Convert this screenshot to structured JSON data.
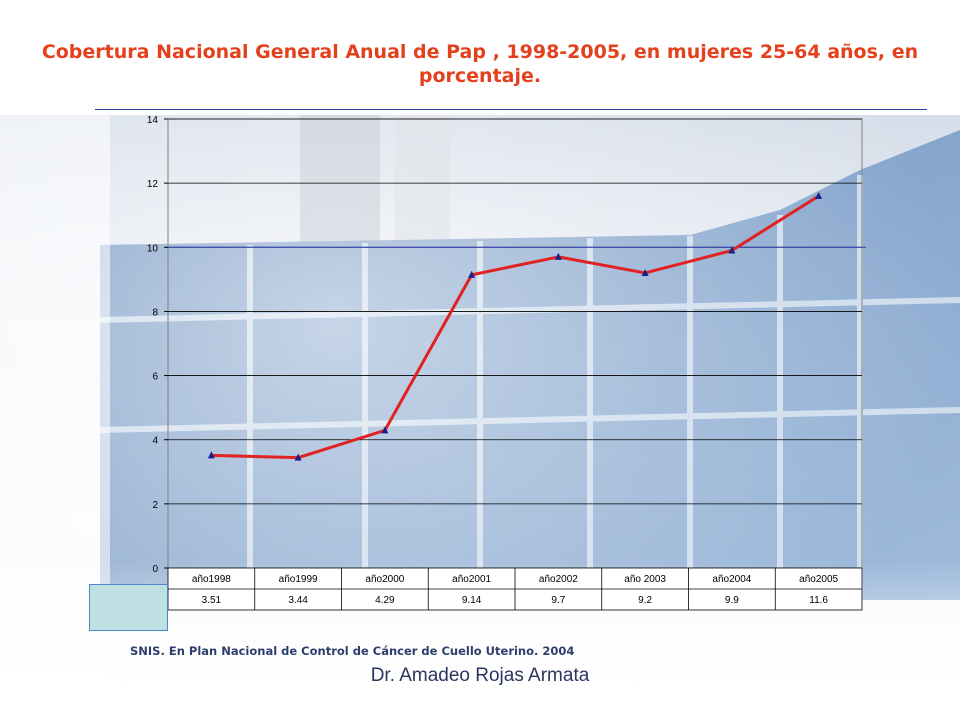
{
  "title_line1": "Cobertura  Nacional General Anual de Pap , 1998-2005, en mujeres 25-64 años, en",
  "title_line2": "porcentaje.",
  "source_note": "SNIS. En Plan Nacional de Control de Cáncer de Cuello Uterino. 2004",
  "author": "Dr. Amadeo Rojas Armata",
  "colors": {
    "title": "#e5401c",
    "line": "#e02222",
    "marker": "#1a1f8c",
    "gridline": "#000000",
    "reference_line": "#2b3fb0"
  },
  "chart_data": {
    "type": "line",
    "categories": [
      "año1998",
      "año1999",
      "año2000",
      "año2001",
      "año2002",
      "año 2003",
      "año2004",
      "año2005"
    ],
    "series": [
      {
        "values": [
          3.51,
          3.44,
          4.29,
          9.14,
          9.7,
          9.2,
          9.9,
          11.6
        ]
      }
    ],
    "table_values": [
      "3.51",
      "3.44",
      "4.29",
      "9.14",
      "9.7",
      "9.2",
      "9.9",
      "11.6"
    ],
    "y_ticks": [
      "0",
      "2",
      "4",
      "6",
      "8",
      "10",
      "12",
      "14"
    ],
    "ylim": [
      0,
      14
    ],
    "grid": true,
    "marker": "triangle",
    "data_table": true
  }
}
